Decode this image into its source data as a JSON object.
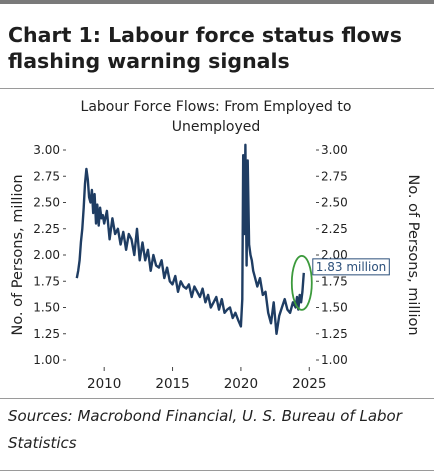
{
  "header": {
    "title": "Chart 1: Labour force status flows flashing warning signals"
  },
  "footer": {
    "sources": "Sources: Macrobond Financial, U. S. Bureau of Labor Statistics"
  },
  "colors": {
    "line": "#1f3d63",
    "highlight": "#3c9a3c",
    "callout_text": "#2b4f7a"
  },
  "chart_data": {
    "type": "line",
    "title": "Labour Force Flows: From Employed to Unemployed",
    "ylabel_left": "No. of Persons, million",
    "ylabel_right": "No. of Persons, million",
    "ylim": [
      1.0,
      3.0
    ],
    "xlim": [
      2007.5,
      2025.2
    ],
    "y_ticks": [
      "1.00",
      "1.25",
      "1.50",
      "1.75",
      "2.00",
      "2.25",
      "2.50",
      "2.75",
      "3.00"
    ],
    "x_ticks": [
      "2010",
      "2015",
      "2020",
      "2025"
    ],
    "grid": false,
    "annotation": {
      "text": "1.83 million",
      "x": 2024.6,
      "y": 1.83
    },
    "series": [
      {
        "x": [
          2008.0,
          2008.1,
          2008.2,
          2008.3,
          2008.4,
          2008.5,
          2008.6,
          2008.7,
          2008.8,
          2008.9,
          2009.0,
          2009.1,
          2009.2,
          2009.3,
          2009.4,
          2009.5,
          2009.6,
          2009.7,
          2009.8,
          2009.9,
          2010.0,
          2010.2,
          2010.4,
          2010.6,
          2010.8,
          2011.0,
          2011.2,
          2011.4,
          2011.6,
          2011.8,
          2012.0,
          2012.2,
          2012.4,
          2012.6,
          2012.8,
          2013.0,
          2013.2,
          2013.4,
          2013.6,
          2013.8,
          2014.0,
          2014.2,
          2014.4,
          2014.6,
          2014.8,
          2015.0,
          2015.2,
          2015.4,
          2015.6,
          2015.8,
          2016.0,
          2016.2,
          2016.4,
          2016.6,
          2016.8,
          2017.0,
          2017.2,
          2017.4,
          2017.6,
          2017.8,
          2018.0,
          2018.2,
          2018.4,
          2018.6,
          2018.8,
          2019.0,
          2019.2,
          2019.4,
          2019.6,
          2019.8,
          2020.0,
          2020.1,
          2020.17,
          2020.25,
          2020.33,
          2020.42,
          2020.5,
          2020.6,
          2020.7,
          2020.8,
          2020.9,
          2021.0,
          2021.2,
          2021.4,
          2021.6,
          2021.8,
          2022.0,
          2022.2,
          2022.4,
          2022.6,
          2022.8,
          2023.0,
          2023.2,
          2023.4,
          2023.6,
          2023.8,
          2024.0,
          2024.1,
          2024.2,
          2024.3,
          2024.4,
          2024.5,
          2024.6
        ],
        "values": [
          1.78,
          1.85,
          1.95,
          2.12,
          2.25,
          2.45,
          2.68,
          2.82,
          2.72,
          2.55,
          2.5,
          2.62,
          2.4,
          2.58,
          2.3,
          2.48,
          2.28,
          2.45,
          2.35,
          2.38,
          2.3,
          2.42,
          2.15,
          2.35,
          2.2,
          2.25,
          2.1,
          2.22,
          2.05,
          2.2,
          2.15,
          2.0,
          2.25,
          1.95,
          2.12,
          1.95,
          2.05,
          1.85,
          2.0,
          1.9,
          1.88,
          1.95,
          1.78,
          1.88,
          1.75,
          1.72,
          1.8,
          1.65,
          1.75,
          1.7,
          1.68,
          1.72,
          1.6,
          1.7,
          1.65,
          1.6,
          1.68,
          1.55,
          1.62,
          1.5,
          1.55,
          1.6,
          1.48,
          1.58,
          1.45,
          1.48,
          1.5,
          1.4,
          1.45,
          1.38,
          1.32,
          1.58,
          2.95,
          2.2,
          3.05,
          1.9,
          2.9,
          2.1,
          2.0,
          1.95,
          1.85,
          1.8,
          1.7,
          1.78,
          1.62,
          1.65,
          1.45,
          1.35,
          1.55,
          1.25,
          1.42,
          1.5,
          1.58,
          1.48,
          1.45,
          1.55,
          1.5,
          1.6,
          1.48,
          1.62,
          1.55,
          1.65,
          1.83
        ]
      }
    ]
  }
}
